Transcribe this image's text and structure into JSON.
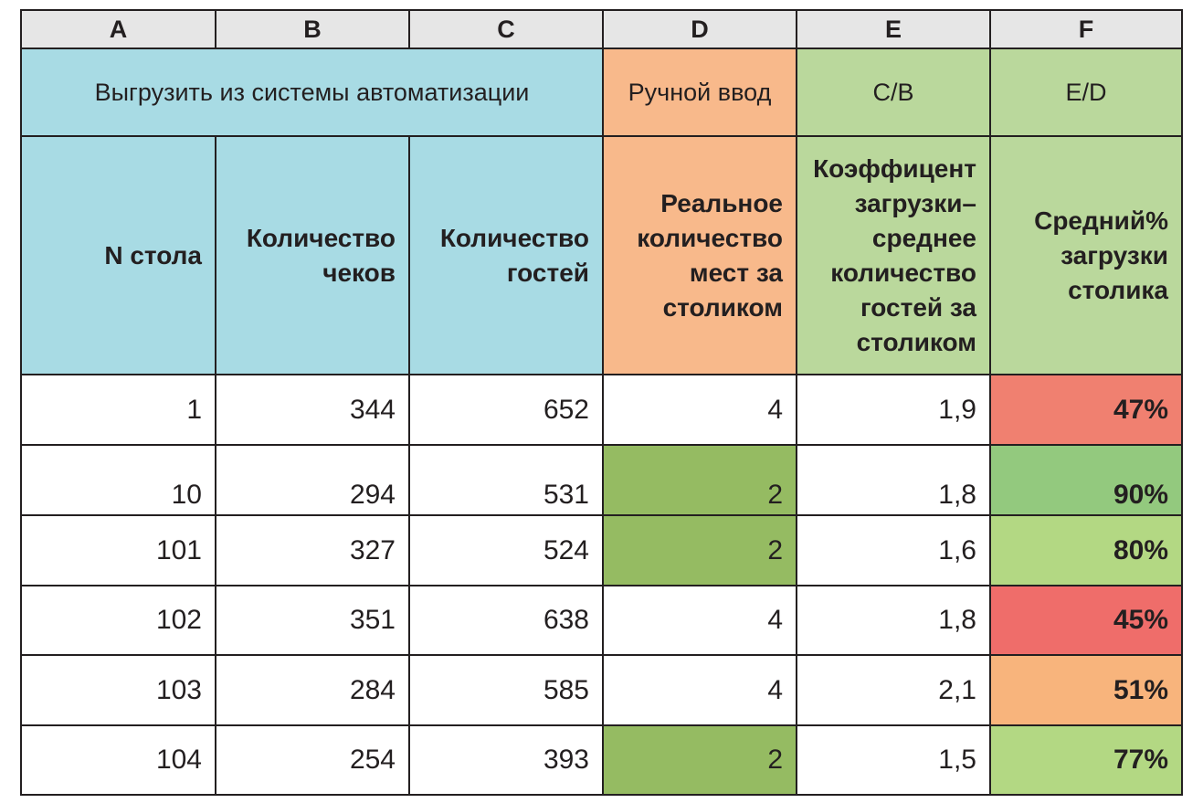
{
  "colors": {
    "column_header_bg": "#e6e6e6",
    "export_bg": "#a8dbe4",
    "manual_bg": "#f8b98b",
    "formula_bg": "#bad89c",
    "manual_highlight": "#95bb62",
    "pct_red": "#f08070",
    "pct_red_strong": "#ef6d6a",
    "pct_green": "#93c97e",
    "pct_light_green": "#b3d883",
    "pct_orange": "#f8b47c"
  },
  "columns": [
    "A",
    "B",
    "C",
    "D",
    "E",
    "F"
  ],
  "bands": {
    "export": "Выгрузить из системы автоматизации",
    "manual": "Ручной ввод",
    "e_formula": "C/B",
    "f_formula": "E/D"
  },
  "headers": {
    "a": [
      "N стола"
    ],
    "b": [
      "Количество",
      "чеков"
    ],
    "c": [
      "Количество",
      "гостей"
    ],
    "d": [
      "Реальное",
      "количество",
      "мест за",
      "столиком"
    ],
    "e": [
      "Коэффицент",
      "загрузки–",
      "среднее",
      "количество",
      "гостей за",
      "столиком"
    ],
    "f": [
      "Средний%",
      "загрузки",
      "столика"
    ]
  },
  "rows": [
    {
      "table": "1",
      "checks": "344",
      "guests": "652",
      "seats": "4",
      "ratio": "1,9",
      "load": "47%"
    },
    {
      "table": "10",
      "checks": "294",
      "guests": "531",
      "seats": "2",
      "ratio": "1,8",
      "load": "90%"
    },
    {
      "table": "101",
      "checks": "327",
      "guests": "524",
      "seats": "2",
      "ratio": "1,6",
      "load": "80%"
    },
    {
      "table": "102",
      "checks": "351",
      "guests": "638",
      "seats": "4",
      "ratio": "1,8",
      "load": "45%"
    },
    {
      "table": "103",
      "checks": "284",
      "guests": "585",
      "seats": "4",
      "ratio": "2,1",
      "load": "51%"
    },
    {
      "table": "104",
      "checks": "254",
      "guests": "393",
      "seats": "2",
      "ratio": "1,5",
      "load": "77%"
    }
  ]
}
